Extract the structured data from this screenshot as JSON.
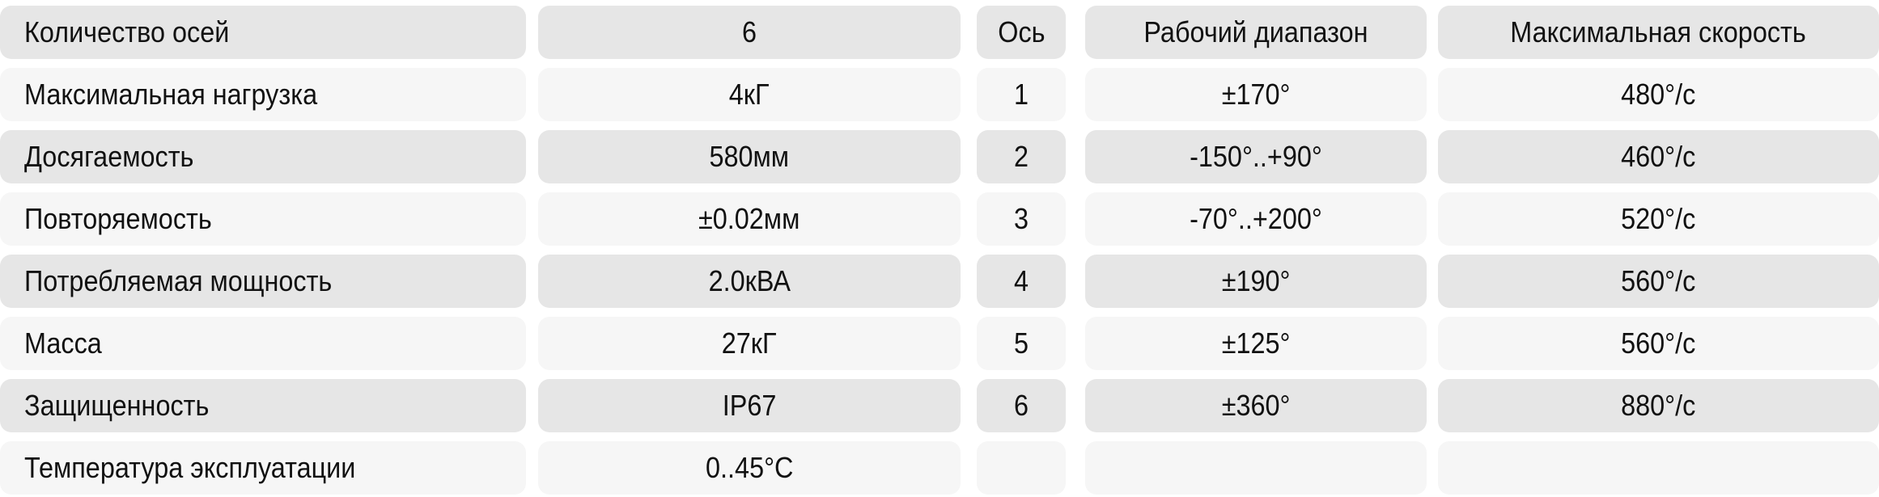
{
  "specs": [
    {
      "label": "Количество осей",
      "value": "6"
    },
    {
      "label": "Максимальная нагрузка",
      "value": "4кГ"
    },
    {
      "label": "Досягаемость",
      "value": "580мм"
    },
    {
      "label": "Повторяемость",
      "value": "±0.02мм"
    },
    {
      "label": "Потребляемая мощность",
      "value": "2.0кВА"
    },
    {
      "label": "Масса",
      "value": "27кГ"
    },
    {
      "label": "Защищенность",
      "value": "IP67"
    },
    {
      "label": "Температура эксплуатации",
      "value": "0..45°C"
    }
  ],
  "axes_header": {
    "axis": "Ось",
    "range": "Рабочий диапазон",
    "speed": "Максимальная скорость"
  },
  "axes": [
    {
      "axis": "1",
      "range": "±170°",
      "speed": "480°/с"
    },
    {
      "axis": "2",
      "range": "-150°..+90°",
      "speed": "460°/с"
    },
    {
      "axis": "3",
      "range": "-70°..+200°",
      "speed": "520°/с"
    },
    {
      "axis": "4",
      "range": "±190°",
      "speed": "560°/с"
    },
    {
      "axis": "5",
      "range": "±125°",
      "speed": "560°/с"
    },
    {
      "axis": "6",
      "range": "±360°",
      "speed": "880°/с"
    },
    {
      "axis": "",
      "range": "",
      "speed": ""
    }
  ],
  "colors": {
    "row_dark": "#e6e6e6",
    "row_light": "#f6f6f6"
  }
}
